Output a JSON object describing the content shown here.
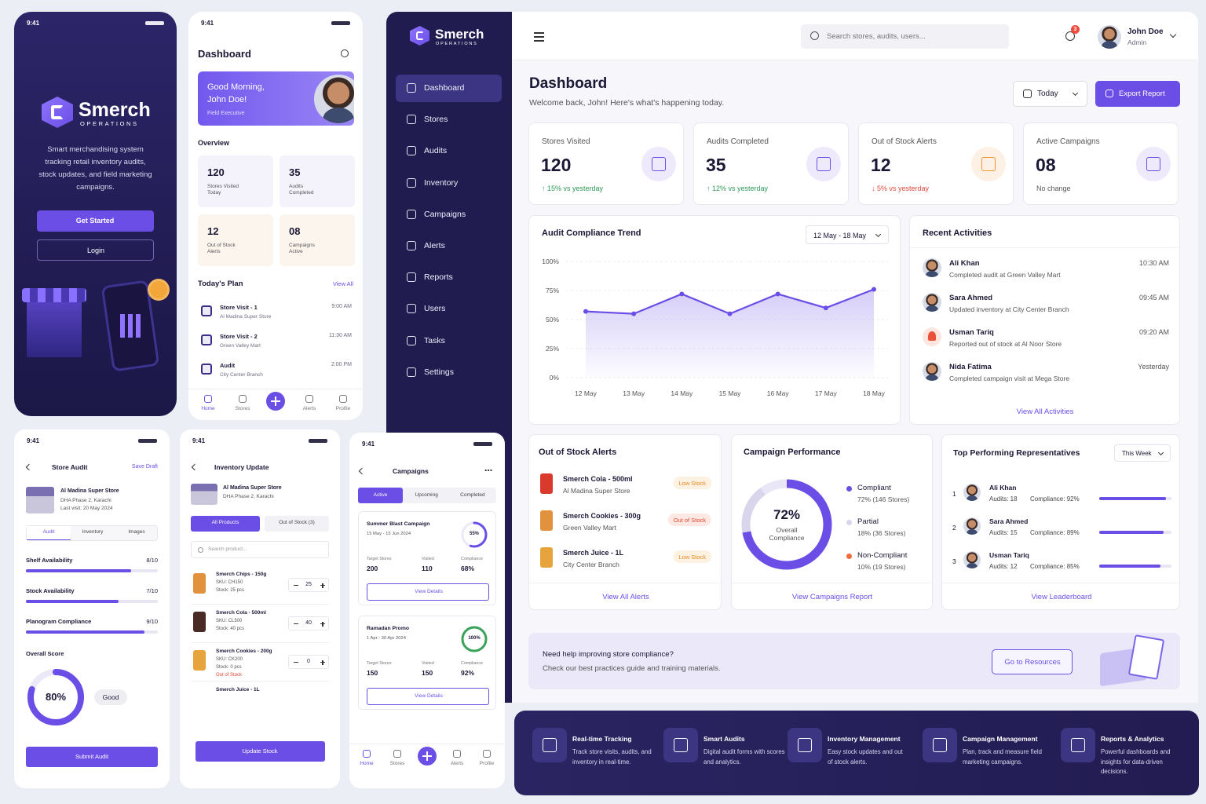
{
  "splash": {
    "time": "9:41",
    "brand": "Smerch",
    "brand_sub": "OPERATIONS",
    "description": "Smart merchandising system tracking retail inventory audits, stock updates, and field marketing campaigns.",
    "primary_button": "Get Started",
    "secondary_button": "Login"
  },
  "mobile_dashboard": {
    "time": "9:41",
    "title": "Dashboard",
    "greeting": "Good Morning,",
    "name": "John Doe!",
    "role": "Field Executive",
    "overview_title": "Overview",
    "overview": [
      {
        "value": "120",
        "label": "Stores Visited Today"
      },
      {
        "value": "35",
        "label": "Audits Completed"
      },
      {
        "value": "12",
        "label": "Out of Stock Alerts"
      },
      {
        "value": "08",
        "label": "Campaigns Active"
      }
    ],
    "plan_title": "Today's Plan",
    "plan_link": "View All",
    "plan": [
      {
        "title": "Store Visit - 1",
        "subtitle": "Al Madina Super Store",
        "time": "9:00 AM"
      },
      {
        "title": "Store Visit - 2",
        "subtitle": "Green Valley Mart",
        "time": "11:30 AM"
      },
      {
        "title": "Audit",
        "subtitle": "City Center Branch",
        "time": "2:00 PM"
      }
    ],
    "nav": [
      "Home",
      "Stores",
      "Alerts",
      "Profile"
    ]
  },
  "sidebar": {
    "brand": "Smerch",
    "brand_sub": "OPERATIONS",
    "menu": [
      "Dashboard",
      "Stores",
      "Audits",
      "Inventory",
      "Campaigns",
      "Alerts",
      "Reports",
      "Users",
      "Tasks",
      "Settings"
    ]
  },
  "topbar": {
    "search_placeholder": "Search stores, audits, users...",
    "notification_count": "3",
    "user_name": "John Doe",
    "user_role": "Admin"
  },
  "header": {
    "title": "Dashboard",
    "subtitle": "Welcome back, John! Here's what's happening today.",
    "period": "Today",
    "export": "Export Report"
  },
  "stats": [
    {
      "label": "Stores Visited",
      "value": "120",
      "change": "↑ 15% vs yesterday"
    },
    {
      "label": "Audits Completed",
      "value": "35",
      "change": "↑ 12% vs yesterday"
    },
    {
      "label": "Out of Stock Alerts",
      "value": "12",
      "change": "↓ 5% vs yesterday"
    },
    {
      "label": "Active Campaigns",
      "value": "08",
      "change": "No change"
    }
  ],
  "chart_data": {
    "type": "line",
    "title": "Audit Compliance Trend",
    "date_range": "12 May - 18 May",
    "categories": [
      "12 May",
      "13 May",
      "14 May",
      "15 May",
      "16 May",
      "17 May",
      "18 May"
    ],
    "values": [
      57,
      55,
      72,
      55,
      72,
      60,
      76
    ],
    "color": "#6a4ee6",
    "ylim": [
      0,
      100
    ],
    "yticks": [
      {
        "value": 0,
        "label": "0%"
      },
      {
        "value": 25,
        "label": "25%"
      },
      {
        "value": 50,
        "label": "50%"
      },
      {
        "value": 75,
        "label": "75%"
      },
      {
        "value": 100,
        "label": "100%"
      }
    ],
    "grid": true
  },
  "activities": {
    "title": "Recent Activities",
    "items": [
      {
        "name": "Ali Khan",
        "text": "Completed audit at Green Valley Mart",
        "time": "10:30 AM"
      },
      {
        "name": "Sara Ahmed",
        "text": "Updated inventory at City Center Branch",
        "time": "09:45 AM"
      },
      {
        "name": "Usman Tariq",
        "text": "Reported out of stock at Al Noor Store",
        "time": "09:20 AM"
      },
      {
        "name": "Nida Fatima",
        "text": "Completed campaign visit at Mega Store",
        "time": "Yesterday"
      }
    ],
    "link": "View All Activities"
  },
  "stock_alerts": {
    "title": "Out of Stock Alerts",
    "items": [
      {
        "product": "Smerch Cola - 500ml",
        "store": "Al Madina Super Store",
        "status": "Low Stock"
      },
      {
        "product": "Smerch Cookies - 300g",
        "store": "Green Valley Mart",
        "status": "Out of Stock"
      },
      {
        "product": "Smerch Juice - 1L",
        "store": "City Center Branch",
        "status": "Low Stock"
      }
    ],
    "link": "View All Alerts"
  },
  "campaign_performance": {
    "title": "Campaign Performance",
    "center_value": "72%",
    "center_label": "Overall Compliance",
    "legend": [
      {
        "name": "Compliant",
        "detail": "72% (146 Stores)",
        "color": "#6a4ee6"
      },
      {
        "name": "Partial",
        "detail": "18% (36 Stores)",
        "color": "#d9d5ec"
      },
      {
        "name": "Non-Compliant",
        "detail": "10% (19 Stores)",
        "color": "#f26b3a"
      }
    ],
    "link": "View Campaigns Report"
  },
  "top_reps": {
    "title": "Top Performing Representatives",
    "period": "This Week",
    "items": [
      {
        "rank": "1",
        "name": "Ali Khan",
        "audits": "Audits: 18",
        "compliance": "Compliance: 92%"
      },
      {
        "rank": "2",
        "name": "Sara Ahmed",
        "audits": "Audits: 15",
        "compliance": "Compliance: 89%"
      },
      {
        "rank": "3",
        "name": "Usman Tariq",
        "audits": "Audits: 12",
        "compliance": "Compliance: 85%"
      }
    ],
    "link": "View Leaderboard"
  },
  "help_banner": {
    "title": "Need help improving store compliance?",
    "text": "Check our best practices guide and training materials.",
    "button": "Go to Resources"
  },
  "features": [
    {
      "title": "Real-time Tracking",
      "text": "Track store visits, audits, and inventory in real-time."
    },
    {
      "title": "Smart Audits",
      "text": "Digital audit forms with scores and analytics."
    },
    {
      "title": "Inventory Management",
      "text": "Easy stock updates and out of stock alerts."
    },
    {
      "title": "Campaign Management",
      "text": "Plan, track and measure field marketing campaigns."
    },
    {
      "title": "Reports & Analytics",
      "text": "Powerful dashboards and insights for data-driven decisions."
    }
  ],
  "store_audit": {
    "time": "9:41",
    "title": "Store Audit",
    "action": "Save Draft",
    "store": "Al Madina Super Store",
    "address": "DHA Phase 2, Karachi",
    "last_visit": "Last visit: 20 May 2024",
    "tabs": [
      "Audit",
      "Inventory",
      "Images"
    ],
    "metrics": [
      {
        "label": "Shelf Availability",
        "score": "8/10"
      },
      {
        "label": "Stock Availability",
        "score": "7/10"
      },
      {
        "label": "Planogram Compliance",
        "score": "9/10"
      }
    ],
    "score_title": "Overall Score",
    "score": "80%",
    "score_label": "Good",
    "button": "Submit Audit"
  },
  "inventory_update": {
    "time": "9:41",
    "title": "Inventory Update",
    "store": "Al Madina Super Store",
    "address": "DHA Phase 2, Karachi",
    "tabs": [
      "All Products",
      "Out of Stock (3)"
    ],
    "search_placeholder": "Search product...",
    "products": [
      {
        "name": "Smerch Chips - 150g",
        "sku": "SKU: CH150",
        "stock": "Stock: 25 pcs",
        "qty": "25"
      },
      {
        "name": "Smerch Cola - 500ml",
        "sku": "SKU: CL500",
        "stock": "Stock: 40 pcs",
        "qty": "40"
      },
      {
        "name": "Smerch Cookies - 200g",
        "sku": "SKU: CK200",
        "stock": "Stock: 0 pcs",
        "qty": "0",
        "note": "Out of Stock"
      },
      {
        "name": "Smerch Juice - 1L"
      }
    ],
    "button": "Update Stock"
  },
  "campaigns_screen": {
    "time": "9:41",
    "title": "Campaigns",
    "tabs": [
      "Active",
      "Upcoming",
      "Completed"
    ],
    "campaigns": [
      {
        "name": "Summer Blast Campaign",
        "dates": "15 May - 15 Jun 2024",
        "progress": "55%",
        "target_label": "Target Stores",
        "target": "200",
        "visited_label": "Visited",
        "visited": "110",
        "compliance_label": "Compliance",
        "compliance": "68%",
        "button": "View Details"
      },
      {
        "name": "Ramadan Promo",
        "dates": "1 Apr - 30 Apr 2024",
        "progress": "100%",
        "target_label": "Target Stores",
        "target": "150",
        "visited_label": "Visited",
        "visited": "150",
        "compliance_label": "Compliance",
        "compliance": "92%",
        "button": "View Details"
      }
    ],
    "nav": [
      "Home",
      "Stores",
      "Alerts",
      "Profile"
    ]
  }
}
